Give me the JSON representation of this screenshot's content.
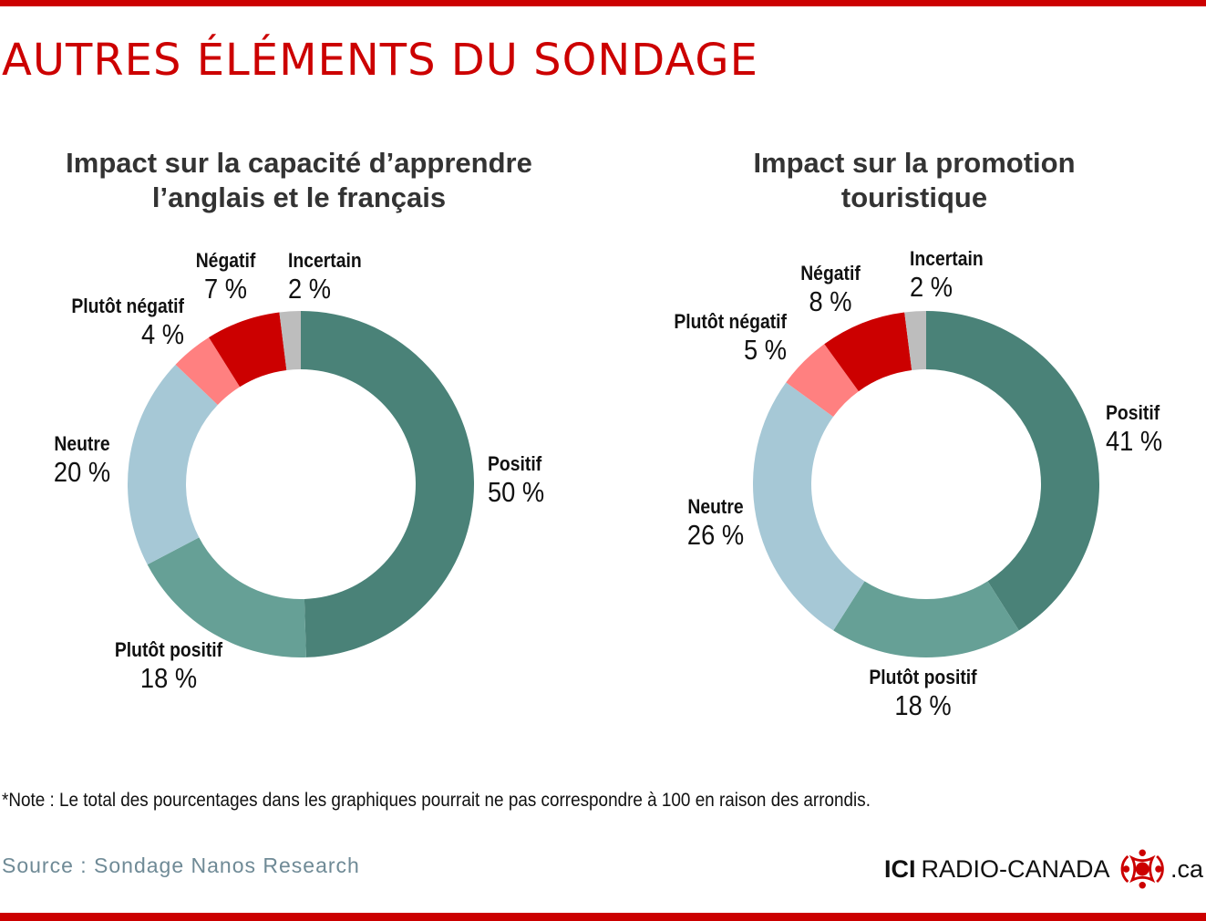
{
  "page": {
    "headline": "AUTRES ÉLÉMENTS DU SONDAGE",
    "note": "*Note : Le total des pourcentages dans les graphiques pourrait ne pas correspondre à 100 en raison des arrondis.",
    "source": "Source : Sondage Nanos Research",
    "brand": {
      "ici": "ICI",
      "name": "RADIO-CANADA",
      "domain": ".ca"
    }
  },
  "colors": {
    "accent": "#cc0000",
    "positif": "#4a8278",
    "plutot_positif": "#66a096",
    "neutre": "#a6c8d6",
    "plutot_negatif": "#ff8080",
    "negatif": "#cc0000",
    "incertain": "#bdbdbd"
  },
  "chart_data": [
    {
      "type": "pie",
      "title": "Impact sur la capacité d’apprendre l’anglais et le français",
      "title_lines": [
        "Impact sur la capacité d’apprendre",
        "l’anglais et le français"
      ],
      "slices": [
        {
          "label": "Positif",
          "value": 50,
          "display": "50 %",
          "color": "#4a8278"
        },
        {
          "label": "Plutôt positif",
          "value": 18,
          "display": "18 %",
          "color": "#66a096"
        },
        {
          "label": "Neutre",
          "value": 20,
          "display": "20 %",
          "color": "#a6c8d6"
        },
        {
          "label": "Plutôt négatif",
          "value": 4,
          "display": "4 %",
          "color": "#ff8080"
        },
        {
          "label": "Négatif",
          "value": 7,
          "display": "7 %",
          "color": "#cc0000"
        },
        {
          "label": "Incertain",
          "value": 2,
          "display": "2 %",
          "color": "#bdbdbd"
        }
      ]
    },
    {
      "type": "pie",
      "title": "Impact sur la promotion touristique",
      "title_lines": [
        "Impact sur la promotion",
        "touristique"
      ],
      "slices": [
        {
          "label": "Positif",
          "value": 41,
          "display": "41 %",
          "color": "#4a8278"
        },
        {
          "label": "Plutôt positif",
          "value": 18,
          "display": "18 %",
          "color": "#66a096"
        },
        {
          "label": "Neutre",
          "value": 26,
          "display": "26 %",
          "color": "#a6c8d6"
        },
        {
          "label": "Plutôt négatif",
          "value": 5,
          "display": "5 %",
          "color": "#ff8080"
        },
        {
          "label": "Négatif",
          "value": 8,
          "display": "8 %",
          "color": "#cc0000"
        },
        {
          "label": "Incertain",
          "value": 2,
          "display": "2 %",
          "color": "#bdbdbd"
        }
      ]
    }
  ]
}
